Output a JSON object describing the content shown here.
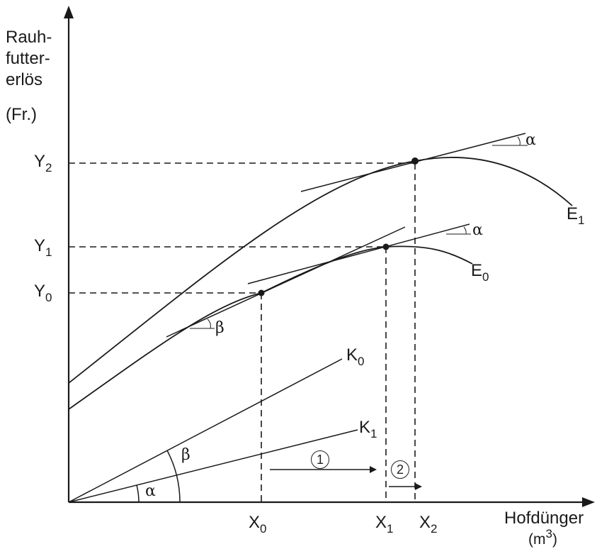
{
  "y_axis": {
    "label_lines": [
      "Rauh-",
      "futter-",
      "erlös"
    ],
    "unit": "(Fr.)"
  },
  "x_axis": {
    "label": "Hofdünger",
    "unit_base": "(m",
    "unit_exp": "3",
    "unit_close": ")"
  },
  "y_ticks": [
    {
      "base": "Y",
      "sub": "2"
    },
    {
      "base": "Y",
      "sub": "1"
    },
    {
      "base": "Y",
      "sub": "0"
    }
  ],
  "x_ticks": [
    {
      "base": "X",
      "sub": "0"
    },
    {
      "base": "X",
      "sub": "1"
    },
    {
      "base": "X",
      "sub": "2"
    }
  ],
  "curves": [
    {
      "base": "E",
      "sub": "1"
    },
    {
      "base": "E",
      "sub": "0"
    }
  ],
  "lines": [
    {
      "base": "K",
      "sub": "0"
    },
    {
      "base": "K",
      "sub": "1"
    }
  ],
  "angles": {
    "alpha": "α",
    "beta": "β"
  },
  "steps": [
    "1",
    "2"
  ],
  "colors": {
    "ink": "#1a1a1a",
    "background": "#ffffff"
  }
}
